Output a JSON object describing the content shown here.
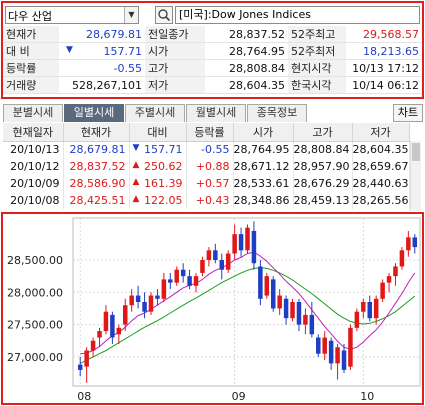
{
  "search": {
    "stock_name": "다우 산업",
    "index_label": "[미국]:Dow Jones Indices"
  },
  "quote": [
    [
      {
        "label": "현재가",
        "value": "28,679.81",
        "color": "blue"
      },
      {
        "label": "전일종가",
        "value": "28,837.52",
        "color": "dk"
      },
      {
        "label": "52주최고",
        "value": "29,568.57",
        "color": "red"
      }
    ],
    [
      {
        "label": "대  비",
        "value": "157.71",
        "color": "blue",
        "mark": "▼"
      },
      {
        "label": "시가",
        "value": "28,764.95",
        "color": "dk"
      },
      {
        "label": "52주최저",
        "value": "18,213.65",
        "color": "blue"
      }
    ],
    [
      {
        "label": "등락률",
        "value": "-0.55",
        "color": "blue"
      },
      {
        "label": "고가",
        "value": "28,808.84",
        "color": "dk"
      },
      {
        "label": "현지시각",
        "value": "10/13 17:12",
        "color": "dk"
      }
    ],
    [
      {
        "label": "거래량",
        "value": "528,267,101",
        "color": "dk"
      },
      {
        "label": "저가",
        "value": "28,604.35",
        "color": "dk"
      },
      {
        "label": "한국시각",
        "value": "10/14 06:12",
        "color": "dk"
      }
    ]
  ],
  "tabs": [
    "분별시세",
    "일별시세",
    "주별시세",
    "월별시세",
    "종목정보"
  ],
  "active_tab": 1,
  "chart_button": "차트",
  "daily": {
    "headers": [
      "현재일자",
      "현재가",
      "대비",
      "등락률",
      "시가",
      "고가",
      "저가"
    ],
    "rows": [
      {
        "date": "20/10/13",
        "price": "28,679.81",
        "dir": "down",
        "change": "157.71",
        "rate": "-0.55",
        "open": "28,764.95",
        "high": "28,808.84",
        "low": "28,604.35"
      },
      {
        "date": "20/10/12",
        "price": "28,837.52",
        "dir": "up",
        "change": "250.62",
        "rate": "+0.88",
        "open": "28,671.12",
        "high": "28,957.90",
        "low": "28,659.67"
      },
      {
        "date": "20/10/09",
        "price": "28,586.90",
        "dir": "up",
        "change": "161.39",
        "rate": "+0.57",
        "open": "28,533.61",
        "high": "28,676.29",
        "low": "28,440.63"
      },
      {
        "date": "20/10/08",
        "price": "28,425.51",
        "dir": "up",
        "change": "122.05",
        "rate": "+0.43",
        "open": "28,348.86",
        "high": "28,459.13",
        "low": "28,265.56"
      }
    ]
  },
  "colors": {
    "up": "#e01818",
    "down": "#1e3fc4",
    "ma_short": "#c020c0",
    "ma_long": "#18a018",
    "frame": "#e0201c"
  },
  "chart_data": {
    "type": "candlestick",
    "y_ticks": [
      "28,500.00",
      "28,000.00",
      "27,500.00",
      "27,000.00"
    ],
    "x_ticks": [
      "08",
      "09",
      "10"
    ],
    "ylim": [
      26550,
      29150
    ],
    "grid": true,
    "candles": [
      [
        26880,
        27000,
        26700,
        26800
      ],
      [
        26850,
        27150,
        26600,
        27100
      ],
      [
        27100,
        27300,
        27000,
        27250
      ],
      [
        27300,
        27450,
        27150,
        27400
      ],
      [
        27400,
        27800,
        27350,
        27700
      ],
      [
        27650,
        27700,
        27200,
        27300
      ],
      [
        27350,
        27500,
        27200,
        27450
      ],
      [
        27500,
        27900,
        27400,
        27800
      ],
      [
        27800,
        28050,
        27700,
        27950
      ],
      [
        27950,
        28100,
        27750,
        27850
      ],
      [
        27850,
        28000,
        27600,
        27700
      ],
      [
        27700,
        28000,
        27650,
        27950
      ],
      [
        27950,
        28050,
        27800,
        27900
      ],
      [
        27900,
        28300,
        27850,
        28200
      ],
      [
        28200,
        28300,
        28050,
        28150
      ],
      [
        28150,
        28400,
        28100,
        28350
      ],
      [
        28350,
        28450,
        28150,
        28250
      ],
      [
        28250,
        28350,
        28050,
        28100
      ],
      [
        28100,
        28300,
        28000,
        28250
      ],
      [
        28300,
        28550,
        28250,
        28500
      ],
      [
        28500,
        28700,
        28400,
        28650
      ],
      [
        28650,
        28750,
        28450,
        28500
      ],
      [
        28500,
        28600,
        28200,
        28350
      ],
      [
        28350,
        28650,
        28300,
        28600
      ],
      [
        28600,
        29050,
        28500,
        28900
      ],
      [
        28900,
        29000,
        28550,
        28650
      ],
      [
        28650,
        29050,
        28600,
        29000
      ],
      [
        28950,
        29100,
        28350,
        28450
      ],
      [
        28400,
        28500,
        27800,
        27900
      ],
      [
        27950,
        28300,
        27900,
        28250
      ],
      [
        28200,
        28250,
        27700,
        27750
      ],
      [
        27750,
        28050,
        27650,
        27950
      ],
      [
        27900,
        27950,
        27500,
        27600
      ],
      [
        27600,
        27900,
        27550,
        27850
      ],
      [
        27850,
        27900,
        27400,
        27500
      ],
      [
        27500,
        27750,
        27350,
        27650
      ],
      [
        27650,
        27850,
        27300,
        27350
      ],
      [
        27300,
        27350,
        27000,
        27050
      ],
      [
        27050,
        27400,
        26950,
        27300
      ],
      [
        27250,
        27300,
        26800,
        26900
      ],
      [
        26900,
        27200,
        26650,
        27150
      ],
      [
        27100,
        27200,
        26750,
        26800
      ],
      [
        26850,
        27500,
        26800,
        27450
      ],
      [
        27450,
        27750,
        27400,
        27700
      ],
      [
        27700,
        27900,
        27600,
        27850
      ],
      [
        27850,
        27950,
        27550,
        27600
      ],
      [
        27600,
        27950,
        27500,
        27900
      ],
      [
        27900,
        28200,
        27850,
        28150
      ],
      [
        28150,
        28300,
        28000,
        28250
      ],
      [
        28250,
        28450,
        28100,
        28400
      ],
      [
        28400,
        28700,
        28350,
        28650
      ],
      [
        28650,
        28950,
        28550,
        28850
      ],
      [
        28850,
        28900,
        28600,
        28700
      ]
    ],
    "ma_short": [
      27050,
      27060,
      27100,
      27160,
      27250,
      27330,
      27380,
      27460,
      27560,
      27640,
      27680,
      27740,
      27800,
      27870,
      27930,
      28000,
      28070,
      28110,
      28140,
      28200,
      28280,
      28340,
      28380,
      28430,
      28500,
      28540,
      28600,
      28620,
      28560,
      28480,
      28380,
      28280,
      28170,
      28080,
      27980,
      27860,
      27730,
      27600,
      27470,
      27360,
      27240,
      27150,
      27120,
      27150,
      27230,
      27330,
      27420,
      27540,
      27680,
      27830,
      27980,
      28150,
      28300
    ],
    "ma_long": [
      26900,
      26950,
      27000,
      27050,
      27100,
      27160,
      27220,
      27280,
      27340,
      27400,
      27460,
      27510,
      27560,
      27620,
      27680,
      27740,
      27800,
      27860,
      27910,
      27970,
      28030,
      28090,
      28150,
      28200,
      28250,
      28300,
      28340,
      28370,
      28380,
      28370,
      28340,
      28300,
      28250,
      28190,
      28120,
      28050,
      27980,
      27900,
      27820,
      27740,
      27660,
      27600,
      27550,
      27520,
      27510,
      27520,
      27550,
      27590,
      27640,
      27700,
      27780,
      27860,
      27940
    ]
  }
}
